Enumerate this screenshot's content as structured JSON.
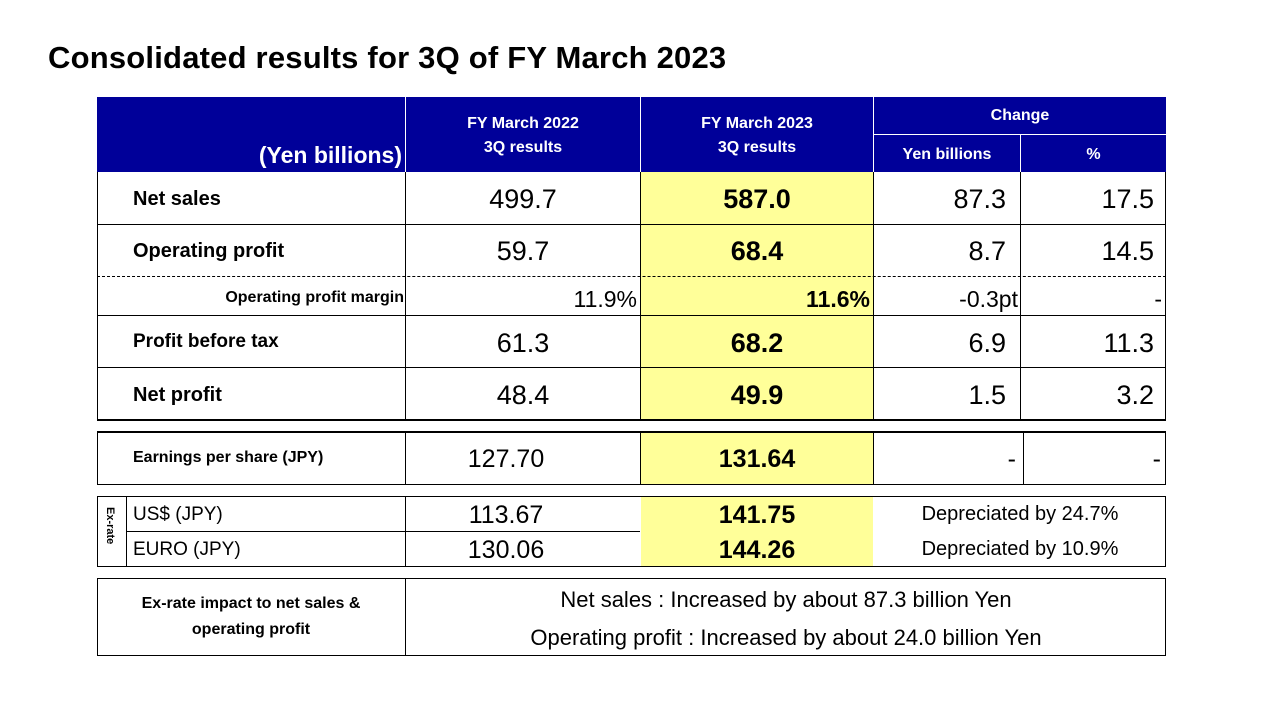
{
  "title": "Consolidated results for 3Q of FY March 2023",
  "header": {
    "units": "(Yen billions)",
    "col1_line1": "FY March 2022",
    "col1_line2": "3Q results",
    "col2_line1": "FY March 2023",
    "col2_line2": "3Q results",
    "change": "Change",
    "change_yen": "Yen billions",
    "change_pct": "%"
  },
  "rows": [
    {
      "label": "Net sales",
      "fy2022": "499.7",
      "fy2023": "587.0",
      "chg_yen": "87.3",
      "chg_pct": "17.5"
    },
    {
      "label": "Operating profit",
      "fy2022": "59.7",
      "fy2023": "68.4",
      "chg_yen": "8.7",
      "chg_pct": "14.5"
    },
    {
      "label": "Operating profit margin",
      "fy2022": "11.9%",
      "fy2023": "11.6%",
      "chg_yen": "-0.3pt",
      "chg_pct": "-"
    },
    {
      "label": "Profit before tax",
      "fy2022": "61.3",
      "fy2023": "68.2",
      "chg_yen": "6.9",
      "chg_pct": "11.3"
    },
    {
      "label": "Net profit",
      "fy2022": "48.4",
      "fy2023": "49.9",
      "chg_yen": "1.5",
      "chg_pct": "3.2"
    }
  ],
  "eps": {
    "label": "Earnings per share (JPY)",
    "fy2022": "127.70",
    "fy2023": "131.64",
    "chg_yen": "-",
    "chg_pct": "-"
  },
  "exrate": {
    "side_label": "Ex-rate",
    "rows": [
      {
        "label": "US$ (JPY)",
        "fy2022": "113.67",
        "fy2023": "141.75",
        "change": "Depreciated by 24.7%"
      },
      {
        "label": "EURO (JPY)",
        "fy2022": "130.06",
        "fy2023": "144.26",
        "change": "Depreciated by 10.9%"
      }
    ]
  },
  "impact": {
    "label_line1": "Ex-rate impact to net sales &",
    "label_line2": "operating profit",
    "line1": "Net sales : Increased by about 87.3 billion Yen",
    "line2": "Operating profit : Increased by about 24.0 billion Yen"
  },
  "colors": {
    "header_bg": "#000099",
    "highlight": "#ffff99"
  }
}
